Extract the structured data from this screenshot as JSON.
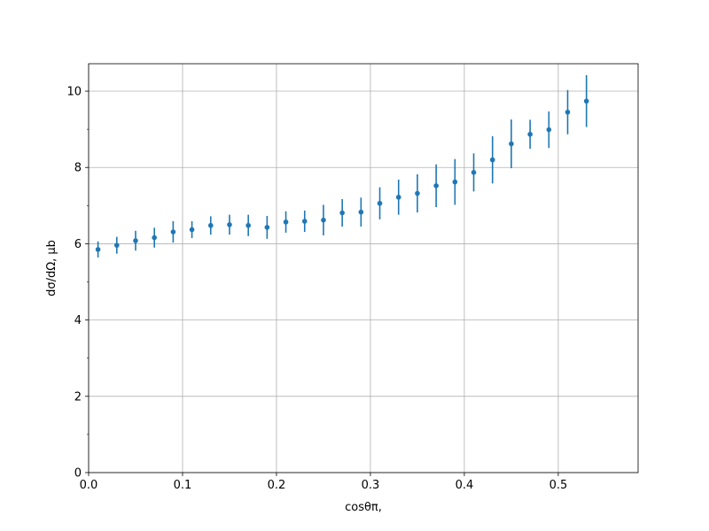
{
  "chart_data": {
    "type": "scatter",
    "title": "",
    "xlabel": "cosθπ,",
    "ylabel": "dσ/dΩ, μb",
    "xlim": [
      0.0,
      0.585
    ],
    "ylim": [
      0.0,
      10.72
    ],
    "xticks": [
      0.0,
      0.1,
      0.2,
      0.3,
      0.4,
      0.5
    ],
    "xtick_labels": [
      "0.0",
      "0.1",
      "0.2",
      "0.3",
      "0.4",
      "0.5"
    ],
    "yticks": [
      0,
      2,
      4,
      6,
      8,
      10
    ],
    "ytick_labels": [
      "0",
      "2",
      "4",
      "6",
      "8",
      "10"
    ],
    "grid": true,
    "legend": "none",
    "color": "#1f77b4",
    "series": [
      {
        "x": [
          0.01,
          0.03,
          0.05,
          0.07,
          0.09,
          0.11,
          0.13,
          0.15,
          0.17,
          0.19,
          0.21,
          0.23,
          0.25,
          0.27,
          0.29,
          0.31,
          0.33,
          0.35,
          0.37,
          0.39,
          0.41,
          0.43,
          0.45,
          0.47,
          0.49,
          0.51,
          0.53
        ],
        "y": [
          5.85,
          5.96,
          6.08,
          6.16,
          6.31,
          6.37,
          6.48,
          6.5,
          6.48,
          6.43,
          6.57,
          6.59,
          6.62,
          6.81,
          6.83,
          7.06,
          7.22,
          7.32,
          7.52,
          7.62,
          7.87,
          8.2,
          8.62,
          8.87,
          8.99,
          9.45,
          9.74
        ],
        "yerr": [
          0.21,
          0.22,
          0.26,
          0.26,
          0.28,
          0.22,
          0.24,
          0.26,
          0.28,
          0.3,
          0.28,
          0.28,
          0.4,
          0.36,
          0.38,
          0.42,
          0.46,
          0.5,
          0.56,
          0.6,
          0.5,
          0.62,
          0.64,
          0.38,
          0.48,
          0.58,
          0.68
        ]
      }
    ]
  }
}
